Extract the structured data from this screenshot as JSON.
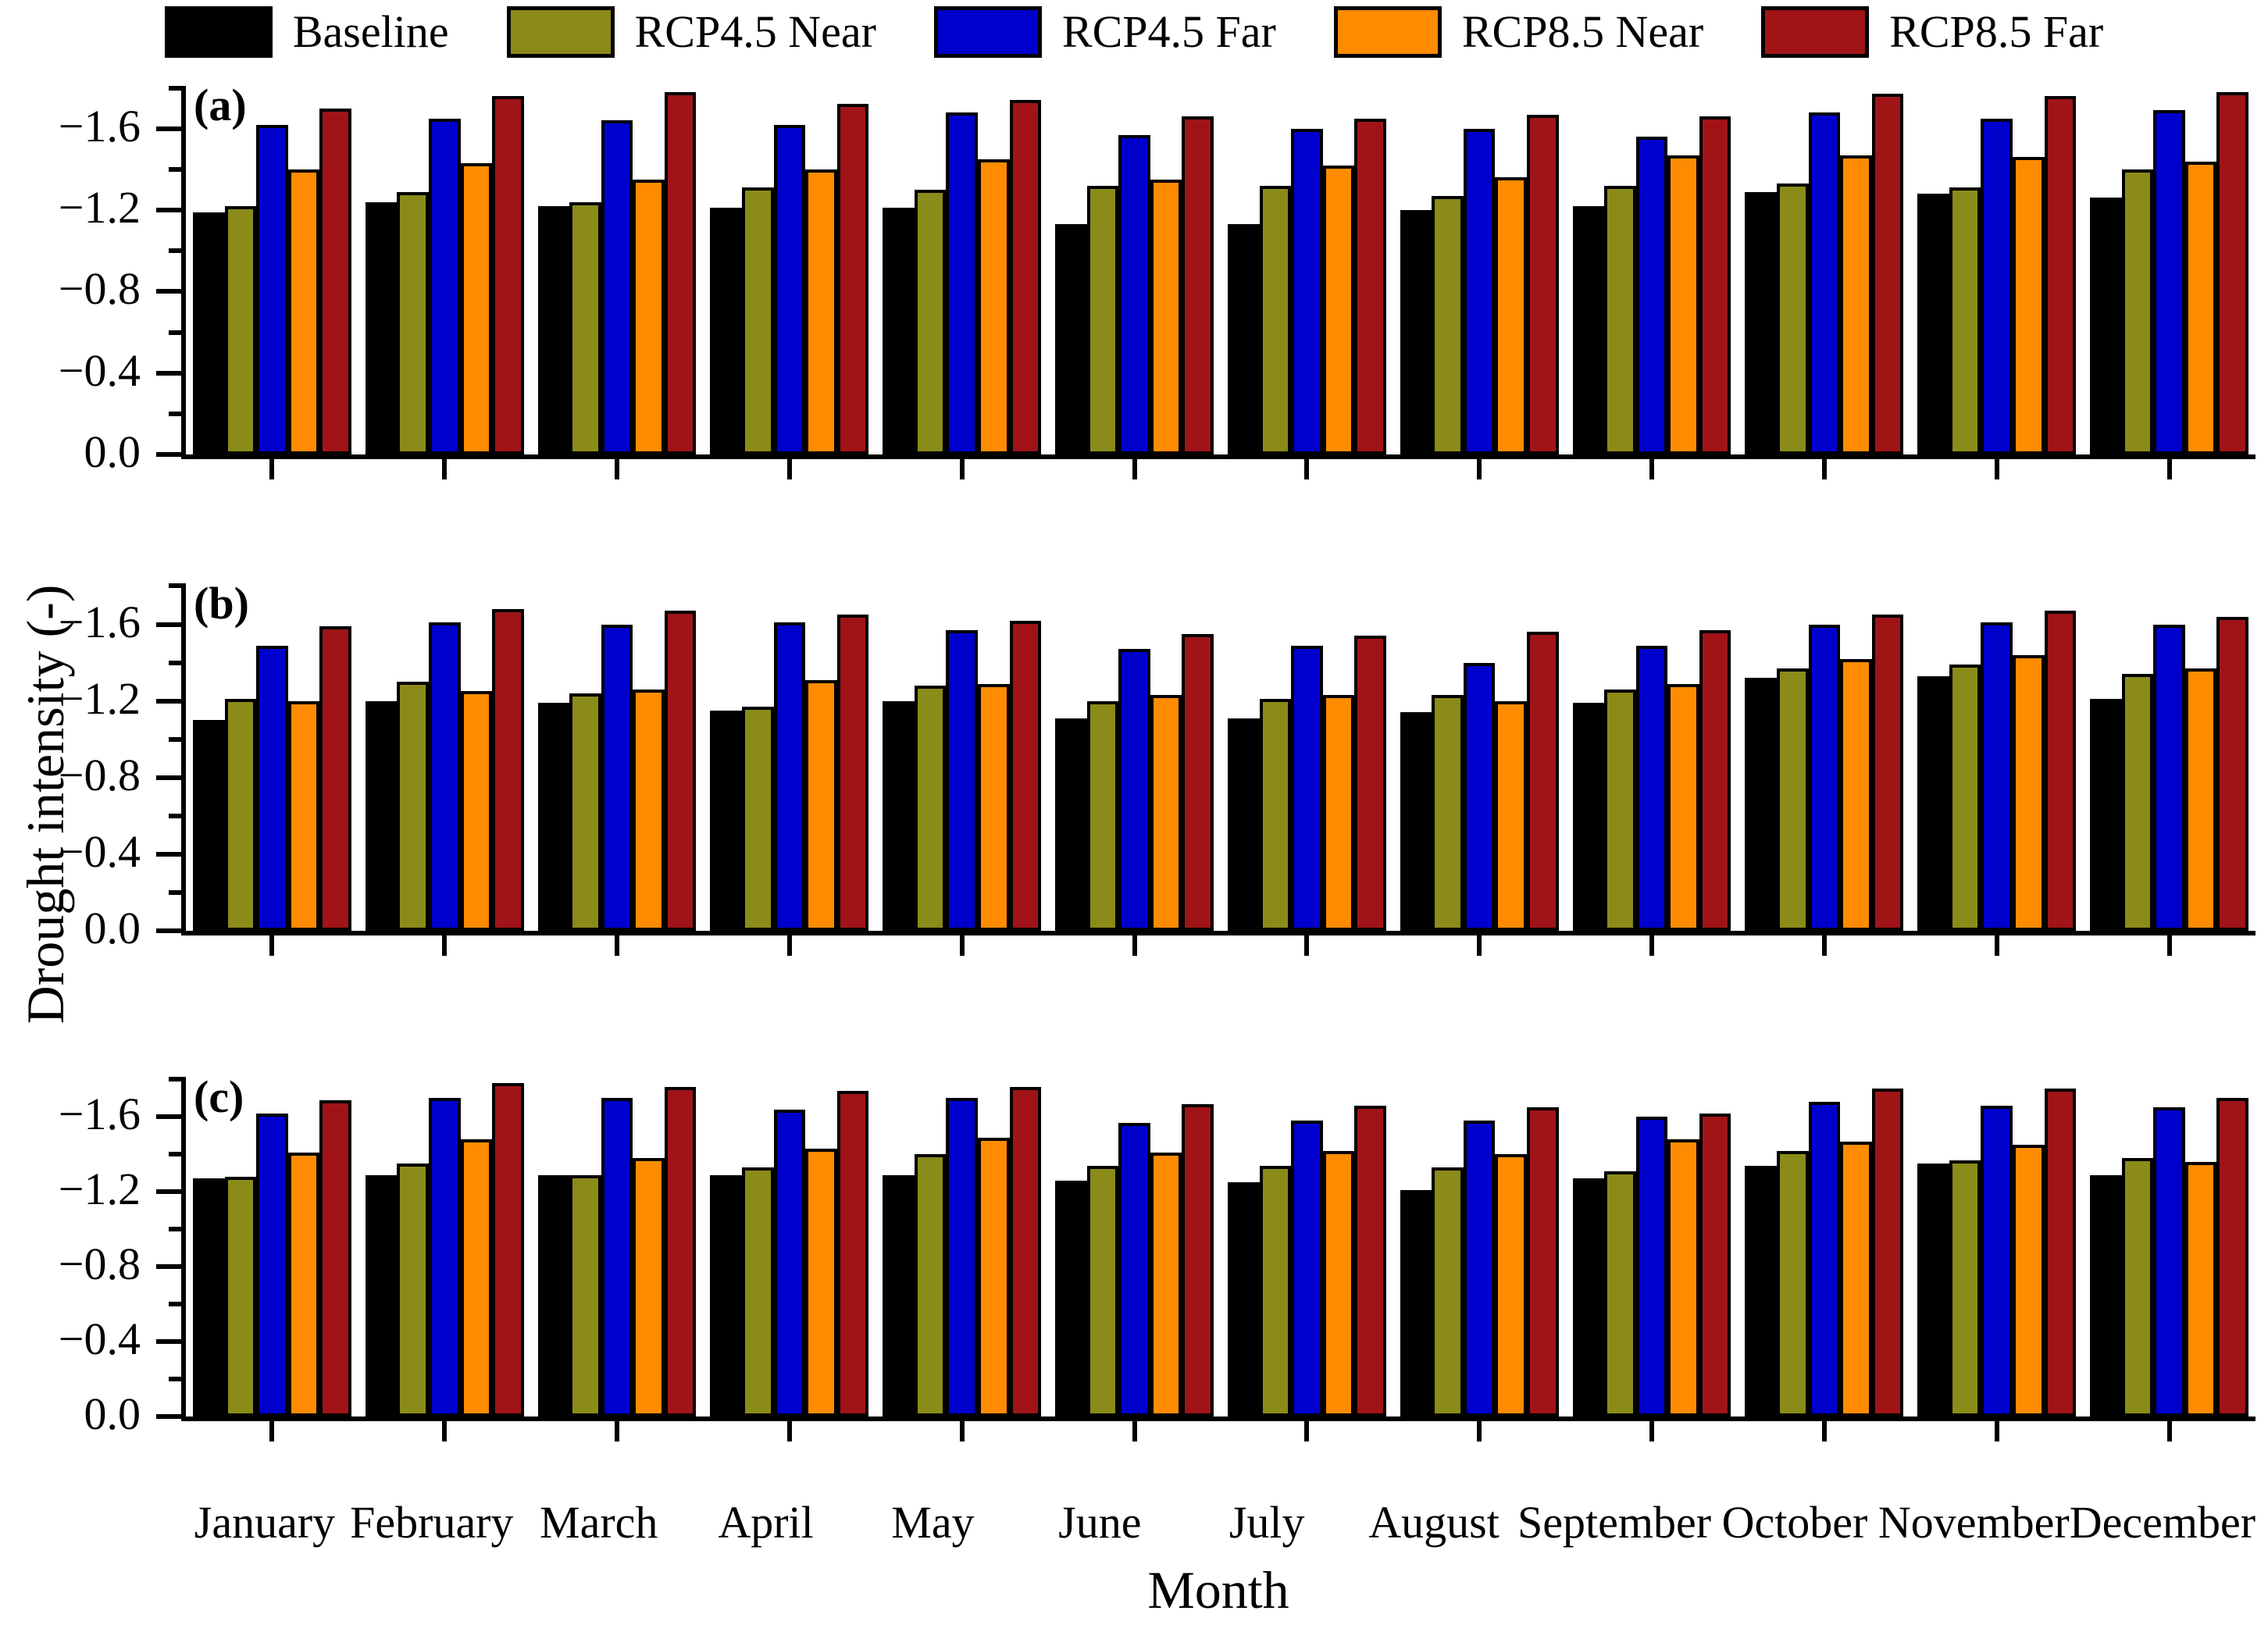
{
  "figure": {
    "ylabel": "Drought intensity (-)",
    "xlabel": "Month"
  },
  "legend": [
    {
      "label": "Baseline",
      "color": "#000000"
    },
    {
      "label": "RCP4.5 Near",
      "color": "#8B8B1A"
    },
    {
      "label": "RCP4.5 Far",
      "color": "#0000CD"
    },
    {
      "label": "RCP8.5 Near",
      "color": "#FF8C00"
    },
    {
      "label": "RCP8.5 Far",
      "color": "#A01418"
    }
  ],
  "axis": {
    "ymax": 1.81,
    "major_ticks": [
      {
        "v": 0.0,
        "label": "0.0"
      },
      {
        "v": 0.4,
        "label": "−0.4"
      },
      {
        "v": 0.8,
        "label": "−0.8"
      },
      {
        "v": 1.2,
        "label": "−1.2"
      },
      {
        "v": 1.6,
        "label": "−1.6"
      }
    ],
    "minor_ticks": [
      0.2,
      0.6,
      1.0,
      1.4,
      1.8
    ]
  },
  "months": [
    "January",
    "February",
    "March",
    "April",
    "May",
    "June",
    "July",
    "August",
    "September",
    "October",
    "November",
    "December"
  ],
  "chart_data": [
    {
      "type": "bar",
      "panel_label": "(a)",
      "title": "",
      "xlabel": "Month",
      "ylabel": "Drought intensity (-)",
      "ylim": [
        0,
        -1.81
      ],
      "grid": false,
      "legend_position": "top",
      "categories": [
        "January",
        "February",
        "March",
        "April",
        "May",
        "June",
        "July",
        "August",
        "September",
        "October",
        "November",
        "December"
      ],
      "series": [
        {
          "name": "Baseline",
          "color": "#000000",
          "values": [
            -1.19,
            -1.24,
            -1.22,
            -1.21,
            -1.21,
            -1.13,
            -1.13,
            -1.2,
            -1.22,
            -1.29,
            -1.28,
            -1.26
          ]
        },
        {
          "name": "RCP4.5 Near",
          "color": "#8B8B1A",
          "values": [
            -1.22,
            -1.29,
            -1.24,
            -1.31,
            -1.3,
            -1.32,
            -1.32,
            -1.27,
            -1.32,
            -1.33,
            -1.31,
            -1.4
          ]
        },
        {
          "name": "RCP4.5 Far",
          "color": "#0000CD",
          "values": [
            -1.62,
            -1.65,
            -1.64,
            -1.62,
            -1.68,
            -1.57,
            -1.6,
            -1.6,
            -1.56,
            -1.68,
            -1.65,
            -1.69
          ]
        },
        {
          "name": "RCP8.5 Near",
          "color": "#FF8C00",
          "values": [
            -1.4,
            -1.43,
            -1.35,
            -1.4,
            -1.45,
            -1.35,
            -1.42,
            -1.36,
            -1.47,
            -1.47,
            -1.46,
            -1.44
          ]
        },
        {
          "name": "RCP8.5 Far",
          "color": "#A01418",
          "values": [
            -1.7,
            -1.76,
            -1.78,
            -1.72,
            -1.74,
            -1.66,
            -1.65,
            -1.67,
            -1.66,
            -1.77,
            -1.76,
            -1.78
          ]
        }
      ]
    },
    {
      "type": "bar",
      "panel_label": "(b)",
      "title": "",
      "xlabel": "Month",
      "ylabel": "Drought intensity (-)",
      "ylim": [
        0,
        -1.81
      ],
      "grid": false,
      "legend_position": "top",
      "categories": [
        "January",
        "February",
        "March",
        "April",
        "May",
        "June",
        "July",
        "August",
        "September",
        "October",
        "November",
        "December"
      ],
      "series": [
        {
          "name": "Baseline",
          "color": "#000000",
          "values": [
            -1.1,
            -1.2,
            -1.19,
            -1.15,
            -1.2,
            -1.11,
            -1.11,
            -1.14,
            -1.19,
            -1.32,
            -1.33,
            -1.21
          ]
        },
        {
          "name": "RCP4.5 Near",
          "color": "#8B8B1A",
          "values": [
            -1.21,
            -1.3,
            -1.24,
            -1.17,
            -1.28,
            -1.2,
            -1.21,
            -1.23,
            -1.26,
            -1.37,
            -1.39,
            -1.34
          ]
        },
        {
          "name": "RCP4.5 Far",
          "color": "#0000CD",
          "values": [
            -1.49,
            -1.61,
            -1.6,
            -1.61,
            -1.57,
            -1.47,
            -1.49,
            -1.4,
            -1.49,
            -1.6,
            -1.61,
            -1.6
          ]
        },
        {
          "name": "RCP8.5 Near",
          "color": "#FF8C00",
          "values": [
            -1.2,
            -1.25,
            -1.26,
            -1.31,
            -1.29,
            -1.23,
            -1.23,
            -1.2,
            -1.29,
            -1.42,
            -1.44,
            -1.37
          ]
        },
        {
          "name": "RCP8.5 Far",
          "color": "#A01418",
          "values": [
            -1.59,
            -1.68,
            -1.67,
            -1.65,
            -1.62,
            -1.55,
            -1.54,
            -1.56,
            -1.57,
            -1.65,
            -1.67,
            -1.64
          ]
        }
      ]
    },
    {
      "type": "bar",
      "panel_label": "(c)",
      "title": "",
      "xlabel": "Month",
      "ylabel": "Drought intensity (-)",
      "ylim": [
        0,
        -1.81
      ],
      "grid": false,
      "legend_position": "top",
      "categories": [
        "January",
        "February",
        "March",
        "April",
        "May",
        "June",
        "July",
        "August",
        "September",
        "October",
        "November",
        "December"
      ],
      "series": [
        {
          "name": "Baseline",
          "color": "#000000",
          "values": [
            -1.27,
            -1.29,
            -1.29,
            -1.29,
            -1.29,
            -1.26,
            -1.25,
            -1.21,
            -1.27,
            -1.34,
            -1.35,
            -1.29
          ]
        },
        {
          "name": "RCP4.5 Near",
          "color": "#8B8B1A",
          "values": [
            -1.28,
            -1.35,
            -1.29,
            -1.33,
            -1.4,
            -1.34,
            -1.34,
            -1.33,
            -1.31,
            -1.42,
            -1.37,
            -1.38
          ]
        },
        {
          "name": "RCP4.5 Far",
          "color": "#0000CD",
          "values": [
            -1.62,
            -1.7,
            -1.7,
            -1.64,
            -1.7,
            -1.57,
            -1.58,
            -1.58,
            -1.6,
            -1.68,
            -1.66,
            -1.65
          ]
        },
        {
          "name": "RCP8.5 Near",
          "color": "#FF8C00",
          "values": [
            -1.41,
            -1.48,
            -1.38,
            -1.43,
            -1.49,
            -1.41,
            -1.42,
            -1.4,
            -1.48,
            -1.47,
            -1.45,
            -1.36
          ]
        },
        {
          "name": "RCP8.5 Far",
          "color": "#A01418",
          "values": [
            -1.69,
            -1.78,
            -1.76,
            -1.74,
            -1.76,
            -1.67,
            -1.66,
            -1.65,
            -1.62,
            -1.75,
            -1.75,
            -1.7
          ]
        }
      ]
    }
  ]
}
